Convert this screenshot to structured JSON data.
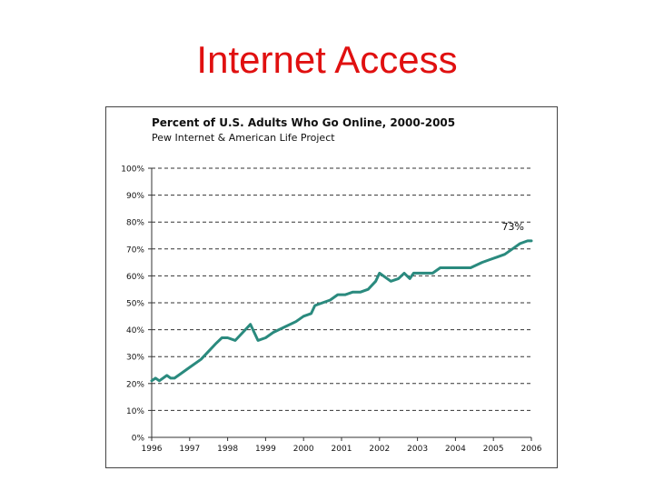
{
  "slide": {
    "title": "Internet Access"
  },
  "chart_data": {
    "type": "line",
    "title": "Percent of U.S. Adults Who Go Online, 2000-2005",
    "subtitle": "Pew Internet & American Life Project",
    "xlabel": "",
    "ylabel": "",
    "ylim": [
      0,
      100
    ],
    "y_ticks": [
      "0%",
      "10%",
      "20%",
      "30%",
      "40%",
      "50%",
      "60%",
      "70%",
      "80%",
      "90%",
      "100%"
    ],
    "x_ticks": [
      "1996",
      "1997",
      "1998",
      "1999",
      "2000",
      "2001",
      "2002",
      "2003",
      "2004",
      "2005",
      "2006"
    ],
    "grid": "horizontal dashed",
    "line_color": "#2a8a7e",
    "series": [
      {
        "values": [
          [
            1996.0,
            21
          ],
          [
            1996.1,
            22
          ],
          [
            1996.2,
            21
          ],
          [
            1996.4,
            23
          ],
          [
            1996.5,
            22
          ],
          [
            1996.6,
            22
          ],
          [
            1996.8,
            24
          ],
          [
            1997.0,
            26
          ],
          [
            1997.3,
            29
          ],
          [
            1997.5,
            32
          ],
          [
            1997.7,
            35
          ],
          [
            1997.85,
            37
          ],
          [
            1998.0,
            37
          ],
          [
            1998.2,
            36
          ],
          [
            1998.4,
            39
          ],
          [
            1998.6,
            42
          ],
          [
            1998.8,
            36
          ],
          [
            1999.0,
            37
          ],
          [
            1999.2,
            39
          ],
          [
            1999.5,
            41
          ],
          [
            1999.8,
            43
          ],
          [
            2000.0,
            45
          ],
          [
            2000.2,
            46
          ],
          [
            2000.3,
            49
          ],
          [
            2000.5,
            50
          ],
          [
            2000.7,
            51
          ],
          [
            2000.9,
            53
          ],
          [
            2001.1,
            53
          ],
          [
            2001.3,
            54
          ],
          [
            2001.5,
            54
          ],
          [
            2001.7,
            55
          ],
          [
            2001.9,
            58
          ],
          [
            2002.0,
            61
          ],
          [
            2002.1,
            60
          ],
          [
            2002.3,
            58
          ],
          [
            2002.5,
            59
          ],
          [
            2002.65,
            61
          ],
          [
            2002.8,
            59
          ],
          [
            2002.9,
            61
          ],
          [
            2003.1,
            61
          ],
          [
            2003.4,
            61
          ],
          [
            2003.6,
            63
          ],
          [
            2003.8,
            63
          ],
          [
            2004.1,
            63
          ],
          [
            2004.4,
            63
          ],
          [
            2004.7,
            65
          ],
          [
            2004.9,
            66
          ],
          [
            2005.1,
            67
          ],
          [
            2005.3,
            68
          ],
          [
            2005.5,
            70
          ],
          [
            2005.7,
            72
          ],
          [
            2005.9,
            73
          ],
          [
            2006.0,
            73
          ]
        ]
      }
    ],
    "annotations": [
      {
        "text": "73%",
        "x": 2005.7,
        "y": 73
      }
    ]
  }
}
